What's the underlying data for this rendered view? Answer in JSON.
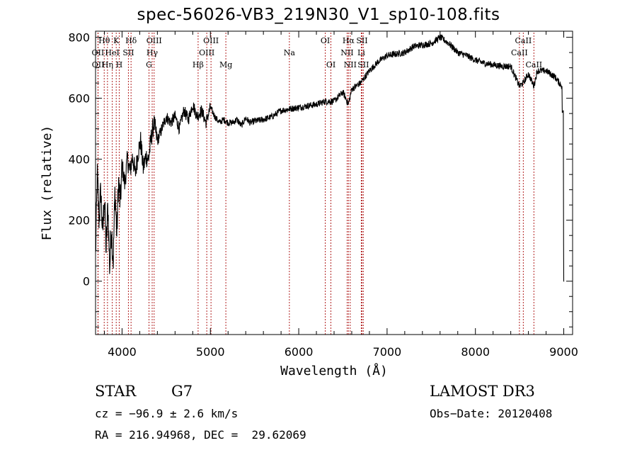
{
  "chart_data": {
    "type": "line",
    "title": "spec-56026-VB3_219N30_V1_sp10-108.fits",
    "xlabel": "Wavelength (Å)",
    "ylabel": "Flux (relative)",
    "xlim": [
      3700,
      9100
    ],
    "ylim": [
      -175,
      820
    ],
    "xticks": [
      4000,
      5000,
      6000,
      7000,
      8000,
      9000
    ],
    "xtick_labels": [
      "4000",
      "5000",
      "6000",
      "7000",
      "8000",
      "9000"
    ],
    "yticks": [
      0,
      200,
      400,
      600,
      800
    ],
    "ytick_labels": [
      "0",
      "200",
      "400",
      "600",
      "800"
    ],
    "series": [
      {
        "name": "flux",
        "x": [
          3700,
          3720,
          3740,
          3760,
          3780,
          3800,
          3820,
          3840,
          3860,
          3880,
          3900,
          3920,
          3940,
          3960,
          3980,
          4000,
          4030,
          4060,
          4090,
          4120,
          4150,
          4180,
          4210,
          4240,
          4270,
          4300,
          4330,
          4360,
          4400,
          4450,
          4500,
          4550,
          4600,
          4650,
          4700,
          4750,
          4800,
          4850,
          4900,
          4950,
          5000,
          5050,
          5100,
          5150,
          5200,
          5250,
          5300,
          5350,
          5400,
          5450,
          5500,
          5600,
          5700,
          5800,
          5900,
          6000,
          6100,
          6200,
          6300,
          6400,
          6500,
          6563,
          6600,
          6700,
          6800,
          6900,
          7000,
          7100,
          7200,
          7300,
          7400,
          7500,
          7600,
          7650,
          7700,
          7800,
          7900,
          8000,
          8100,
          8200,
          8300,
          8400,
          8498,
          8542,
          8600,
          8662,
          8700,
          8800,
          8850,
          8900,
          8950,
          8980,
          9000
        ],
        "y": [
          80,
          350,
          200,
          300,
          150,
          280,
          100,
          250,
          40,
          180,
          60,
          300,
          150,
          330,
          250,
          380,
          320,
          400,
          360,
          410,
          350,
          420,
          460,
          370,
          410,
          400,
          470,
          520,
          460,
          500,
          540,
          520,
          540,
          500,
          560,
          530,
          580,
          540,
          560,
          520,
          570,
          540,
          520,
          530,
          520,
          520,
          530,
          510,
          535,
          520,
          525,
          530,
          540,
          560,
          565,
          570,
          575,
          580,
          590,
          590,
          620,
          580,
          630,
          650,
          690,
          720,
          740,
          745,
          750,
          770,
          775,
          780,
          800,
          790,
          780,
          750,
          740,
          725,
          715,
          710,
          705,
          705,
          640,
          650,
          680,
          640,
          690,
          690,
          680,
          670,
          650,
          640,
          0
        ]
      }
    ],
    "lines": [
      {
        "label": "OII",
        "wl": 3727,
        "row": 2
      },
      {
        "label": "OII",
        "wl": 3729,
        "row": 3
      },
      {
        "label": "Hθ",
        "wl": 3798,
        "row": 1
      },
      {
        "label": "Hη",
        "wl": 3835,
        "row": 3
      },
      {
        "label": "HeI",
        "wl": 3889,
        "row": 2
      },
      {
        "label": "K",
        "wl": 3934,
        "row": 1
      },
      {
        "label": "H",
        "wl": 3968,
        "row": 3
      },
      {
        "label": "SII",
        "wl": 4072,
        "row": 2
      },
      {
        "label": "Hδ",
        "wl": 4102,
        "row": 1
      },
      {
        "label": "G",
        "wl": 4305,
        "row": 3
      },
      {
        "label": "Hγ",
        "wl": 4341,
        "row": 2
      },
      {
        "label": "OIII",
        "wl": 4363,
        "row": 1
      },
      {
        "label": "Hβ",
        "wl": 4861,
        "row": 3
      },
      {
        "label": "OIII",
        "wl": 4959,
        "row": 2
      },
      {
        "label": "OIII",
        "wl": 5007,
        "row": 1
      },
      {
        "label": "Mg",
        "wl": 5175,
        "row": 3
      },
      {
        "label": "Na",
        "wl": 5894,
        "row": 2
      },
      {
        "label": "OI",
        "wl": 6300,
        "row": 1
      },
      {
        "label": "OI",
        "wl": 6364,
        "row": 3
      },
      {
        "label": "NII",
        "wl": 6548,
        "row": 2
      },
      {
        "label": "Hα",
        "wl": 6563,
        "row": 1
      },
      {
        "label": "NII",
        "wl": 6583,
        "row": 3
      },
      {
        "label": "Li",
        "wl": 6708,
        "row": 2
      },
      {
        "label": "SII",
        "wl": 6716,
        "row": 1
      },
      {
        "label": "SII",
        "wl": 6731,
        "row": 3
      },
      {
        "label": "CaII",
        "wl": 8498,
        "row": 2
      },
      {
        "label": "CaII",
        "wl": 8542,
        "row": 1
      },
      {
        "label": "CaII",
        "wl": 8662,
        "row": 3
      }
    ],
    "line_color": "#000000",
    "marker_color": "#b22222"
  },
  "info": {
    "object_class": "STAR",
    "subclass": "G7",
    "survey": "LAMOST DR3",
    "cz": "cz = −96.9 ± 2.6 km/s",
    "obs_date": "Obs−Date: 20120408",
    "radec": "RA = 216.94968, DEC =  29.62069"
  }
}
